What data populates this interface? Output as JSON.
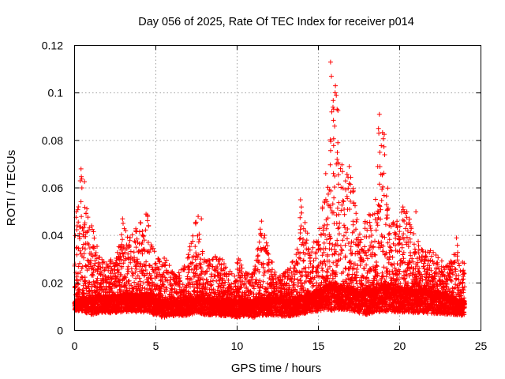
{
  "chart_data": {
    "type": "scatter",
    "title": "Day 056 of 2025, Rate Of TEC Index for receiver p014",
    "xlabel": "GPS time / hours",
    "ylabel": "ROTI / TECUs",
    "xlim": [
      0,
      25
    ],
    "ylim": [
      0,
      0.12
    ],
    "x_ticks": [
      0,
      5,
      10,
      15,
      20,
      25
    ],
    "x_tick_labels": [
      "0",
      "5",
      "10",
      "15",
      "20",
      "25"
    ],
    "y_ticks": [
      0,
      0.02,
      0.04,
      0.06,
      0.08,
      0.1,
      0.12
    ],
    "y_tick_labels": [
      "0",
      "0.02",
      "0.04",
      "0.06",
      "0.08",
      "0.1",
      "0.12"
    ],
    "grid": true,
    "marker": "plus",
    "color": "#ff0000",
    "series": [
      {
        "name": "ROTI",
        "x": [
          0.0,
          0.5,
          1.0,
          1.5,
          2.0,
          2.5,
          3.0,
          3.5,
          4.0,
          4.5,
          5.0,
          5.5,
          6.0,
          6.5,
          7.0,
          7.5,
          8.0,
          8.5,
          9.0,
          9.5,
          10.0,
          10.5,
          11.0,
          11.5,
          12.0,
          12.5,
          13.0,
          13.5,
          14.0,
          14.5,
          15.0,
          15.5,
          16.0,
          16.5,
          17.0,
          17.5,
          18.0,
          18.5,
          19.0,
          19.5,
          20.0,
          20.5,
          21.0,
          21.5,
          22.0,
          22.5,
          23.0,
          23.5,
          24.0
        ],
        "y_baseline": [
          0.011,
          0.013,
          0.012,
          0.013,
          0.013,
          0.013,
          0.014,
          0.014,
          0.013,
          0.014,
          0.012,
          0.011,
          0.011,
          0.011,
          0.012,
          0.013,
          0.012,
          0.012,
          0.011,
          0.011,
          0.011,
          0.011,
          0.011,
          0.012,
          0.012,
          0.012,
          0.011,
          0.012,
          0.013,
          0.014,
          0.015,
          0.017,
          0.018,
          0.017,
          0.016,
          0.015,
          0.015,
          0.016,
          0.017,
          0.017,
          0.016,
          0.016,
          0.015,
          0.015,
          0.014,
          0.014,
          0.013,
          0.012,
          0.011
        ],
        "y_upper": [
          0.05,
          0.068,
          0.047,
          0.035,
          0.03,
          0.031,
          0.047,
          0.04,
          0.046,
          0.049,
          0.03,
          0.033,
          0.025,
          0.025,
          0.033,
          0.048,
          0.03,
          0.031,
          0.032,
          0.026,
          0.033,
          0.024,
          0.028,
          0.046,
          0.033,
          0.022,
          0.025,
          0.03,
          0.055,
          0.035,
          0.04,
          0.065,
          0.114,
          0.066,
          0.069,
          0.04,
          0.048,
          0.055,
          0.091,
          0.048,
          0.05,
          0.053,
          0.04,
          0.033,
          0.034,
          0.03,
          0.028,
          0.039,
          0.028
        ],
        "y_lower": [
          0.007,
          0.006,
          0.004,
          0.005,
          0.005,
          0.005,
          0.005,
          0.005,
          0.005,
          0.005,
          0.004,
          0.003,
          0.004,
          0.004,
          0.004,
          0.005,
          0.004,
          0.004,
          0.004,
          0.004,
          0.003,
          0.004,
          0.003,
          0.004,
          0.004,
          0.004,
          0.003,
          0.004,
          0.004,
          0.005,
          0.005,
          0.005,
          0.004,
          0.005,
          0.005,
          0.004,
          0.003,
          0.004,
          0.004,
          0.004,
          0.004,
          0.004,
          0.004,
          0.004,
          0.004,
          0.004,
          0.004,
          0.004,
          0.004
        ],
        "points_per_hour": 120
      }
    ],
    "notable_points": [
      {
        "x": 15.75,
        "y": 0.113
      },
      {
        "x": 15.8,
        "y": 0.107
      },
      {
        "x": 16.05,
        "y": 0.103
      },
      {
        "x": 16.1,
        "y": 0.099
      },
      {
        "x": 15.9,
        "y": 0.094
      },
      {
        "x": 18.75,
        "y": 0.091
      },
      {
        "x": 18.7,
        "y": 0.085
      },
      {
        "x": 18.72,
        "y": 0.083
      },
      {
        "x": 16.0,
        "y": 0.086
      },
      {
        "x": 16.2,
        "y": 0.079
      },
      {
        "x": 18.78,
        "y": 0.075
      },
      {
        "x": 18.65,
        "y": 0.069
      },
      {
        "x": 0.4,
        "y": 0.068
      },
      {
        "x": 0.35,
        "y": 0.063
      },
      {
        "x": 0.45,
        "y": 0.06
      },
      {
        "x": 0.1,
        "y": 0.05
      },
      {
        "x": 13.9,
        "y": 0.055
      },
      {
        "x": 13.95,
        "y": 0.052
      },
      {
        "x": 16.9,
        "y": 0.069
      },
      {
        "x": 15.45,
        "y": 0.066
      },
      {
        "x": 7.6,
        "y": 0.048
      },
      {
        "x": 7.8,
        "y": 0.047
      },
      {
        "x": 4.4,
        "y": 0.049
      },
      {
        "x": 4.5,
        "y": 0.048
      },
      {
        "x": 2.95,
        "y": 0.047
      },
      {
        "x": 11.5,
        "y": 0.046
      },
      {
        "x": 20.2,
        "y": 0.052
      },
      {
        "x": 21.0,
        "y": 0.05
      },
      {
        "x": 23.5,
        "y": 0.039
      }
    ]
  }
}
